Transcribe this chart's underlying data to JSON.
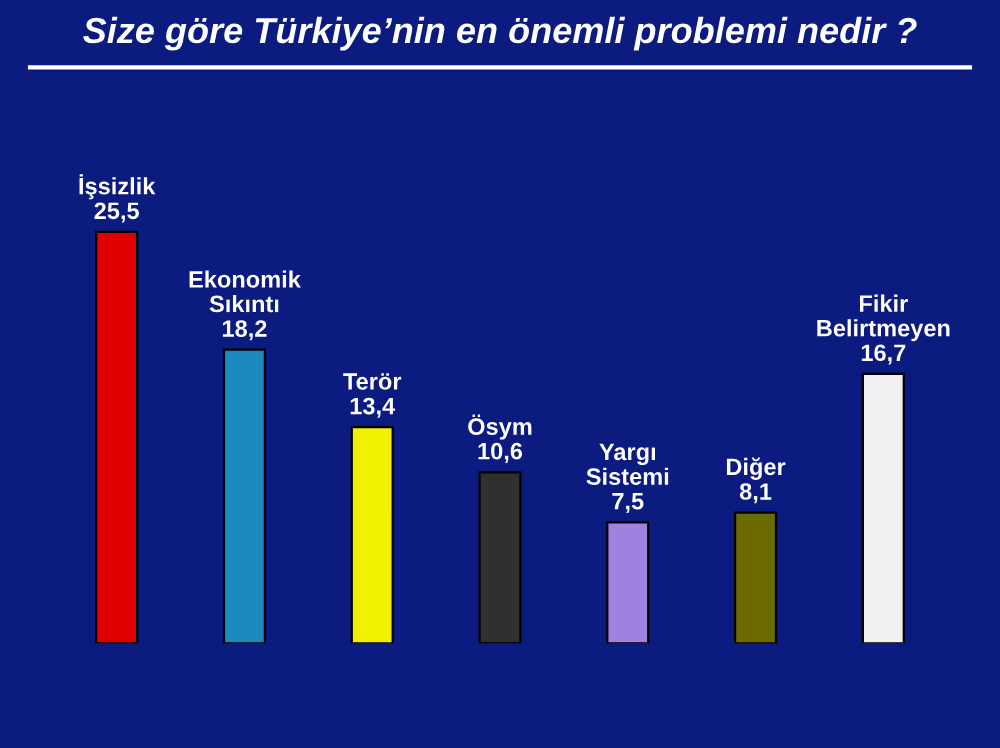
{
  "chart_data": {
    "type": "bar",
    "title": "Size göre Türkiye’nin en önemli problemi nedir ?",
    "categories": [
      "İşsizlik",
      "Ekonomik Sıkıntı",
      "Terör",
      "Ösym",
      "Yargı Sistemi",
      "Diğer",
      "Fikir Belirtmeyen"
    ],
    "values": [
      25.5,
      18.2,
      13.4,
      10.6,
      7.5,
      8.1,
      16.7
    ],
    "value_labels": [
      "25,5",
      "18,2",
      "13,4",
      "10,6",
      "7,5",
      "8,1",
      "16,7"
    ],
    "colors": [
      "#e00000",
      "#1a8ac0",
      "#f0f000",
      "#303030",
      "#a080e0",
      "#6b6b00",
      "#f0f0f0"
    ],
    "data_labels": true
  }
}
